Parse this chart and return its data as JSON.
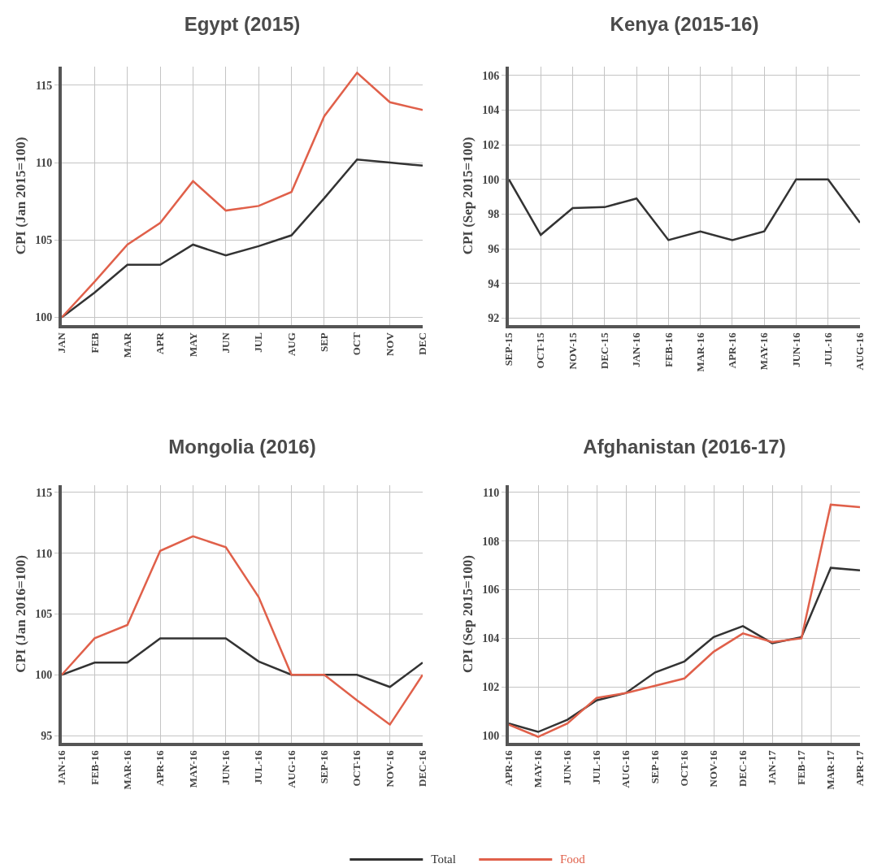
{
  "chart_data": [
    {
      "type": "line",
      "title": "Egypt (2015)",
      "ylabel": "CPI (Jan 2015=100)",
      "categories": [
        "JAN",
        "FEB",
        "MAR",
        "APR",
        "MAY",
        "JUN",
        "JUL",
        "AUG",
        "SEP",
        "OCT",
        "NOV",
        "DEC"
      ],
      "series": [
        {
          "color": "#333333",
          "values": [
            100,
            101.6,
            103.4,
            103.4,
            104.7,
            104.0,
            104.6,
            105.3,
            107.7,
            110.2,
            110.0,
            109.8
          ]
        },
        {
          "color": "#e0604a",
          "values": [
            100,
            102.3,
            104.7,
            106.1,
            108.8,
            106.9,
            107.2,
            108.1,
            113.0,
            115.8,
            113.9,
            113.4
          ]
        }
      ],
      "ylim": [
        99.5,
        116.2
      ],
      "yticks": [
        100,
        105,
        110,
        115
      ],
      "grid": true,
      "marker": "none",
      "line_style": "solid"
    },
    {
      "type": "line",
      "title": "Kenya (2015-16)",
      "ylabel": "CPI (Sep 2015=100)",
      "categories": [
        "SEP-15",
        "OCT-15",
        "NOV-15",
        "DEC-15",
        "JAN-16",
        "FEB-16",
        "MAR-16",
        "APR-16",
        "MAY-16",
        "JUN-16",
        "JUL-16",
        "AUG-16"
      ],
      "series": [
        {
          "color": "#333333",
          "values": [
            100,
            96.8,
            98.35,
            98.4,
            98.9,
            96.5,
            97.0,
            96.5,
            97.0,
            100,
            100,
            97.5
          ]
        }
      ],
      "ylim": [
        91.6,
        106.5
      ],
      "yticks": [
        92,
        94,
        96,
        98,
        100,
        102,
        104,
        106
      ],
      "grid": true,
      "marker": "none",
      "line_style": "solid"
    },
    {
      "type": "line",
      "title": "Mongolia (2016)",
      "ylabel": "CPI (Jan 2016=100)",
      "categories": [
        "JAN-16",
        "FEB-16",
        "MAR-16",
        "APR-16",
        "MAY-16",
        "JUN-16",
        "JUL-16",
        "AUG-16",
        "SEP-16",
        "OCT-16",
        "NOV-16",
        "DEC-16"
      ],
      "series": [
        {
          "color": "#333333",
          "values": [
            100,
            101,
            101,
            103,
            103,
            103,
            101.1,
            100,
            100,
            100,
            99,
            101
          ]
        },
        {
          "color": "#e0604a",
          "values": [
            100,
            103,
            104.1,
            110.2,
            111.4,
            110.5,
            106.4,
            100,
            100,
            97.9,
            95.9,
            100
          ]
        }
      ],
      "ylim": [
        94.4,
        115.6
      ],
      "yticks": [
        95,
        100,
        105,
        110,
        115
      ],
      "grid": true,
      "marker": "none",
      "line_style": "solid"
    },
    {
      "type": "line",
      "title": "Afghanistan (2016-17)",
      "ylabel": "CPI (Sep 2015=100)",
      "categories": [
        "APR-16",
        "MAY-16",
        "JUN-16",
        "JUL-16",
        "AUG-16",
        "SEP-16",
        "OCT-16",
        "NOV-16",
        "DEC-16",
        "JAN-17",
        "FEB-17",
        "MAR-17",
        "APR-17"
      ],
      "series": [
        {
          "name": "Total",
          "color": "#333333",
          "values": [
            100.5,
            100.15,
            100.65,
            101.45,
            101.75,
            102.6,
            103.05,
            104.05,
            104.5,
            103.8,
            104.05,
            106.9,
            106.8
          ]
        },
        {
          "name": "Food",
          "color": "#e0604a",
          "values": [
            100.45,
            99.95,
            100.5,
            101.55,
            101.75,
            102.05,
            102.35,
            103.45,
            104.2,
            103.85,
            104.0,
            109.5,
            109.4
          ]
        }
      ],
      "ylim": [
        99.7,
        110.3
      ],
      "yticks": [
        100,
        102,
        104,
        106,
        108,
        110
      ],
      "grid": true,
      "legend": "bottom",
      "marker": "none",
      "line_style": "solid"
    }
  ]
}
